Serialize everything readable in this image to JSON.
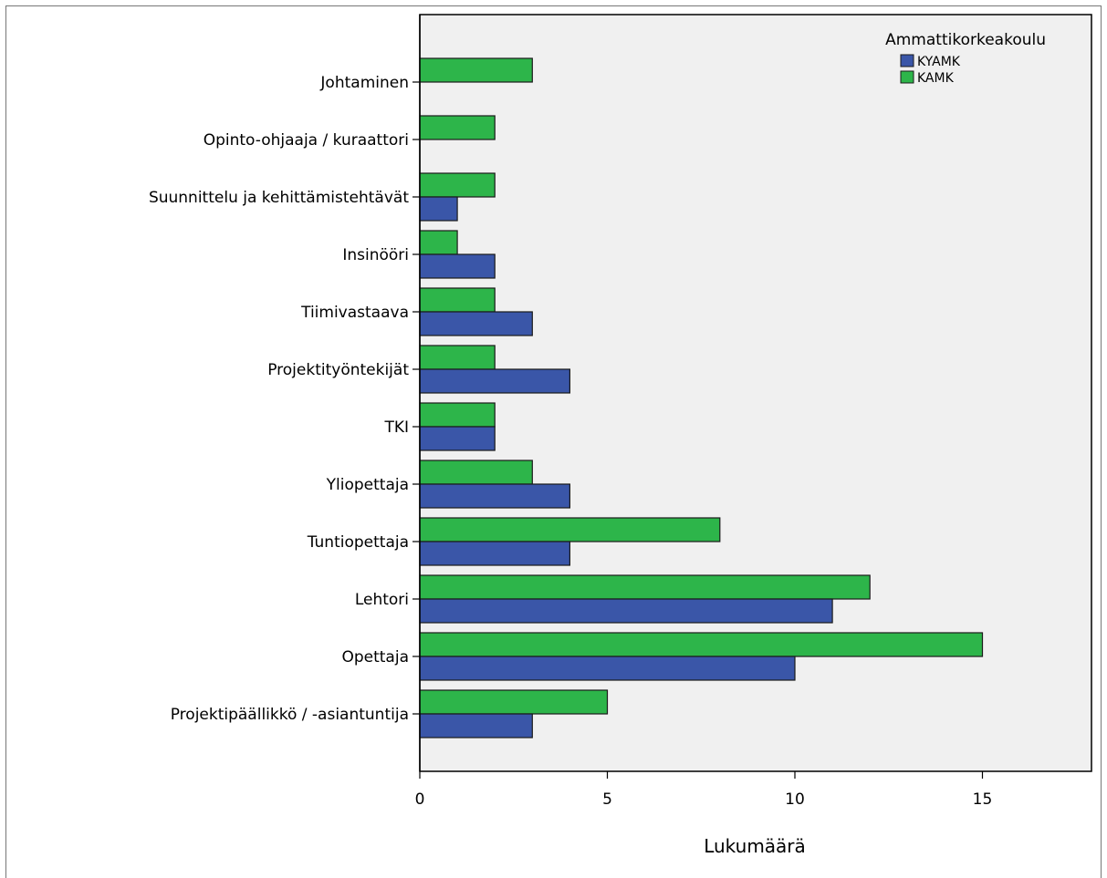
{
  "chart_data": {
    "type": "bar",
    "orientation": "horizontal",
    "categories": [
      "Johtaminen",
      "Opinto-ohjaaja / kuraattori",
      "Suunnittelu ja kehittämistehtävät",
      "Insinööri",
      "Tiimivastaava",
      "Projektityöntekijät",
      "TKI",
      "Yliopettaja",
      "Tuntiopettaja",
      "Lehtori",
      "Opettaja",
      "Projektipäällikkö / -asiantuntija"
    ],
    "series": [
      {
        "name": "KYAMK",
        "color": "#3a56a8",
        "values": [
          0,
          0,
          1,
          2,
          3,
          4,
          2,
          4,
          4,
          11,
          10,
          3
        ]
      },
      {
        "name": "KAMK",
        "color": "#2db54a",
        "values": [
          3,
          2,
          2,
          1,
          2,
          2,
          2,
          3,
          8,
          12,
          15,
          5
        ]
      }
    ],
    "xlabel": "Lukumäärä",
    "ylabel": "",
    "xlim": [
      0,
      18
    ],
    "xticks": [
      0,
      5,
      10,
      15
    ],
    "legend": {
      "title": "Ammattikorkeakoulu",
      "placement": "top-right"
    },
    "plot_background": "#f0f0f0",
    "grid": false
  }
}
